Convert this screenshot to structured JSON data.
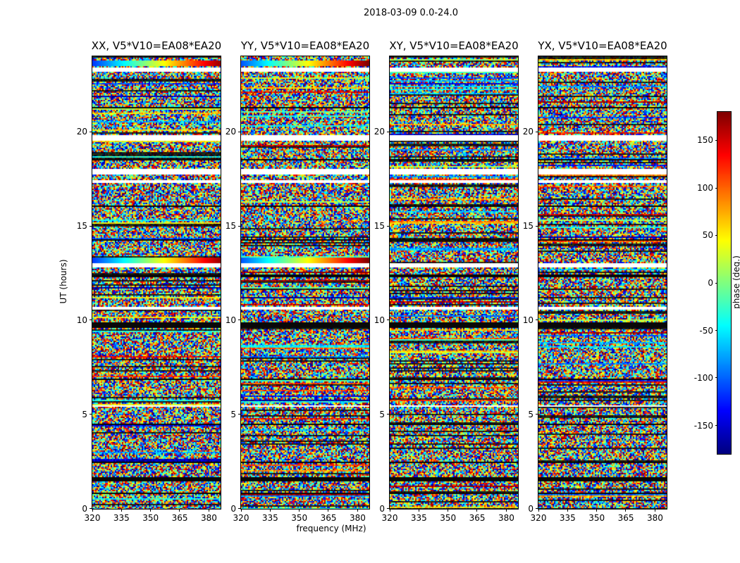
{
  "figure_title": "2018-03-09 0.0-24.0",
  "xlabel": "frequency (MHz)",
  "ylabel": "UT (hours)",
  "panels": [
    {
      "id": "XX",
      "title": "XX, V5*V10=EA08*EA20"
    },
    {
      "id": "YY",
      "title": "YY, V5*V10=EA08*EA20"
    },
    {
      "id": "XY",
      "title": "XY, V5*V10=EA08*EA20"
    },
    {
      "id": "YX",
      "title": "YX, V5*V10=EA08*EA20"
    }
  ],
  "x_tick_labels": [
    "320",
    "335",
    "350",
    "365",
    "380"
  ],
  "y_tick_labels": [
    "0",
    "5",
    "10",
    "15",
    "20"
  ],
  "colorbar": {
    "label": "phase (deg.)",
    "tick_labels": [
      "150",
      "100",
      "50",
      "0",
      "-50",
      "-100",
      "-150"
    ]
  },
  "chart_data": {
    "type": "heatmap",
    "title": "2018-03-09 0.0-24.0",
    "panels": [
      "XX, V5*V10=EA08*EA20",
      "YY, V5*V10=EA08*EA20",
      "XY, V5*V10=EA08*EA20",
      "YX, V5*V10=EA08*EA20"
    ],
    "xlabel": "frequency (MHz)",
    "ylabel": "UT (hours)",
    "x_range": [
      320,
      386
    ],
    "x_ticks": [
      320,
      335,
      350,
      365,
      380
    ],
    "y_range": [
      0,
      24
    ],
    "y_ticks": [
      0,
      5,
      10,
      15,
      20
    ],
    "value_label": "phase (deg.)",
    "value_range": [
      -180,
      180
    ],
    "colorbar_ticks": [
      150,
      100,
      50,
      0,
      -50,
      -100,
      -150
    ],
    "colormap": "jet",
    "description": "Interferometric visibility phase vs UT time (0-24 h) and frequency (320-386 MHz) for baseline V5*V10 = EA08*EA20 on 2018-03-09, one waterfall per correlation product (XX, YY, XY, YX). Values appear as pseudo-random phase noise spanning -180 to +180 deg, with white horizontal rows marking data gaps, black rows marking flagged/zero-phase scans, and smooth frequency-gradient bands (calibrated scans) near 23.6 h and 13.2 h in XX and YY.",
    "seed": 20180309,
    "white_bands": [
      [
        23.25,
        23.45
      ],
      [
        19.55,
        19.85
      ],
      [
        17.8,
        18.05
      ],
      [
        17.35,
        17.45
      ],
      [
        12.85,
        13.1
      ],
      [
        10.6,
        10.78
      ],
      [
        5.45,
        5.55
      ]
    ],
    "black_bands": [
      [
        21.25,
        21.32
      ],
      [
        18.52,
        18.6
      ],
      [
        16.05,
        16.12
      ],
      [
        14.28,
        14.35
      ],
      [
        12.3,
        12.48
      ],
      [
        9.65,
        9.92
      ],
      [
        8.25,
        8.32
      ],
      [
        6.85,
        6.92
      ],
      [
        4.5,
        4.58
      ],
      [
        2.45,
        2.52
      ],
      [
        1.5,
        1.75
      ],
      [
        0.8,
        0.88
      ]
    ],
    "smooth_bands": [
      [
        23.5,
        23.85
      ],
      [
        13.1,
        13.35
      ]
    ]
  }
}
